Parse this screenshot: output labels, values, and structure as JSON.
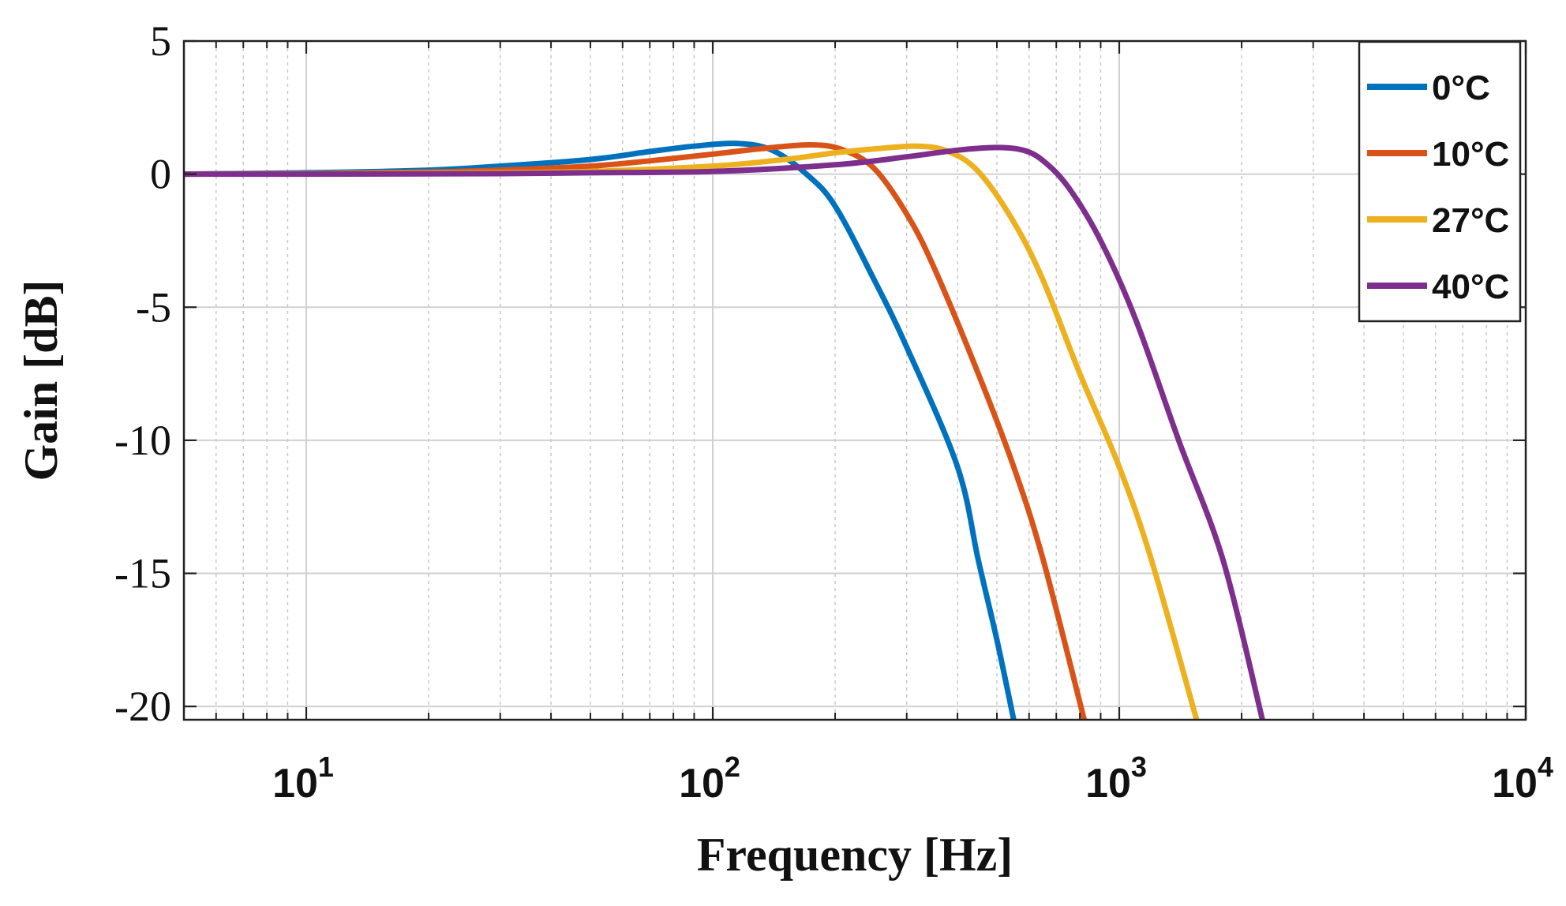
{
  "chart_data": {
    "type": "line",
    "title": "",
    "xlabel": "Frequency [Hz]",
    "ylabel": "Gain [dB]",
    "xscale": "log",
    "xlim": [
      5,
      10000
    ],
    "ylim": [
      -20.5,
      5
    ],
    "yticks": [
      5,
      0,
      -5,
      -10,
      -15,
      -20
    ],
    "ytick_labels": [
      "5",
      "0",
      "-5",
      "-10",
      "-15",
      "-20"
    ],
    "xticks": [
      10,
      100,
      1000,
      10000
    ],
    "xtick_bases": [
      "10",
      "10",
      "10",
      "10"
    ],
    "xtick_exponents": [
      "1",
      "2",
      "3",
      "4"
    ],
    "grid": true,
    "legend_position": "top-right",
    "series": [
      {
        "name": "0°C",
        "color": "#0072BD",
        "x": [
          5,
          10,
          20,
          30,
          50,
          70,
          90,
          115,
          140,
          170,
          200,
          250,
          300,
          400,
          450,
          500,
          550
        ],
        "y": [
          0.0,
          0.05,
          0.15,
          0.3,
          0.55,
          0.85,
          1.05,
          1.15,
          0.9,
          0.0,
          -1.2,
          -4.0,
          -6.5,
          -11.0,
          -14.5,
          -17.5,
          -20.5
        ]
      },
      {
        "name": "10°C",
        "color": "#D95319",
        "x": [
          5,
          10,
          20,
          30,
          50,
          70,
          100,
          130,
          175,
          210,
          250,
          300,
          350,
          450,
          550,
          650,
          820
        ],
        "y": [
          0.0,
          0.02,
          0.08,
          0.15,
          0.3,
          0.5,
          0.75,
          0.95,
          1.1,
          0.9,
          0.2,
          -1.5,
          -3.5,
          -7.5,
          -11.0,
          -14.5,
          -20.5
        ]
      },
      {
        "name": "27°C",
        "color": "#EDB120",
        "x": [
          5,
          10,
          30,
          50,
          100,
          150,
          200,
          250,
          320,
          380,
          450,
          550,
          650,
          800,
          1000,
          1200,
          1550
        ],
        "y": [
          0.0,
          0.01,
          0.05,
          0.1,
          0.3,
          0.55,
          0.8,
          0.95,
          1.05,
          0.85,
          0.1,
          -1.8,
          -4.0,
          -7.5,
          -11.0,
          -14.5,
          -20.5
        ]
      },
      {
        "name": "40°C",
        "color": "#7E2F8E",
        "x": [
          5,
          10,
          30,
          50,
          100,
          200,
          300,
          400,
          500,
          580,
          650,
          750,
          900,
          1100,
          1400,
          1800,
          2250
        ],
        "y": [
          0.0,
          0.0,
          0.02,
          0.05,
          0.1,
          0.35,
          0.65,
          0.9,
          1.0,
          0.9,
          0.5,
          -0.5,
          -2.5,
          -5.5,
          -10.0,
          -14.5,
          -20.5
        ]
      }
    ]
  }
}
